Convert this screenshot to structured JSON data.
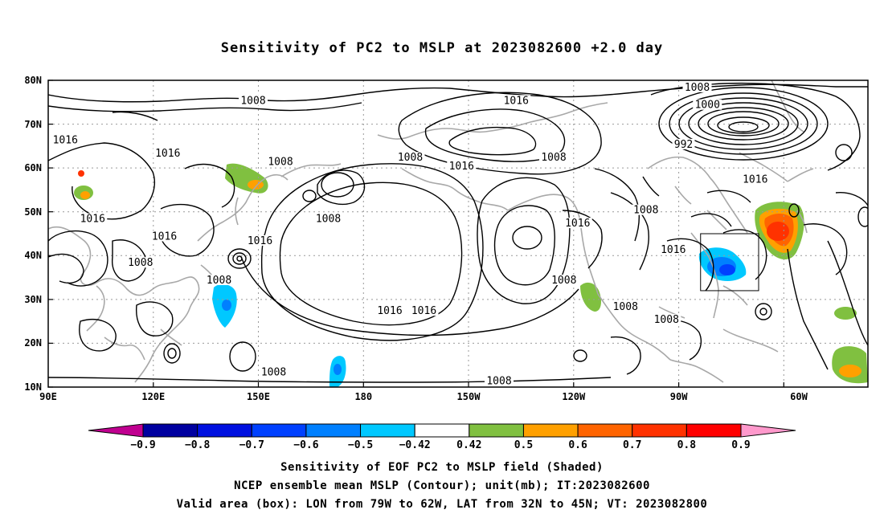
{
  "title": "Sensitivity of PC2 to MSLP at 2023082600 +2.0 day",
  "lat_ticks": [
    "80N",
    "70N",
    "60N",
    "50N",
    "40N",
    "30N",
    "20N",
    "10N"
  ],
  "lon_ticks": [
    "90E",
    "120E",
    "150E",
    "180",
    "150W",
    "120W",
    "90W",
    "60W"
  ],
  "contour_labels": [
    {
      "text": "1008",
      "lon": 150,
      "lat": 75
    },
    {
      "text": "1016",
      "lon": 227,
      "lat": 75
    },
    {
      "text": "1008",
      "lon": 280,
      "lat": 78
    },
    {
      "text": "1000",
      "lon": 283,
      "lat": 74
    },
    {
      "text": "1016",
      "lon": 95,
      "lat": 66
    },
    {
      "text": "1016",
      "lon": 125,
      "lat": 63
    },
    {
      "text": "1008",
      "lon": 158,
      "lat": 61
    },
    {
      "text": "1008",
      "lon": 196,
      "lat": 62
    },
    {
      "text": "1016",
      "lon": 211,
      "lat": 60
    },
    {
      "text": "1008",
      "lon": 238,
      "lat": 62
    },
    {
      "text": "992",
      "lon": 276,
      "lat": 65
    },
    {
      "text": "1016",
      "lon": 297,
      "lat": 57
    },
    {
      "text": "1016",
      "lon": 103,
      "lat": 48
    },
    {
      "text": "1016",
      "lon": 124,
      "lat": 44
    },
    {
      "text": "1016",
      "lon": 152,
      "lat": 43
    },
    {
      "text": "1008",
      "lon": 172,
      "lat": 48
    },
    {
      "text": "1016",
      "lon": 245,
      "lat": 47
    },
    {
      "text": "1008",
      "lon": 265,
      "lat": 50
    },
    {
      "text": "1008",
      "lon": 117,
      "lat": 38
    },
    {
      "text": "1016",
      "lon": 273,
      "lat": 41
    },
    {
      "text": "1008",
      "lon": 140,
      "lat": 34
    },
    {
      "text": "1008",
      "lon": 241,
      "lat": 34
    },
    {
      "text": "1016",
      "lon": 190,
      "lat": 27
    },
    {
      "text": "1016",
      "lon": 200,
      "lat": 27
    },
    {
      "text": "1008",
      "lon": 259,
      "lat": 28
    },
    {
      "text": "1008",
      "lon": 271,
      "lat": 25
    },
    {
      "text": "1008",
      "lon": 156,
      "lat": 13
    },
    {
      "text": "1008",
      "lon": 222,
      "lat": 11
    }
  ],
  "colorbar": {
    "labels": [
      "-0.9",
      "-0.8",
      "-0.7",
      "-0.6",
      "-0.5",
      "-0.42",
      "0.42",
      "0.5",
      "0.6",
      "0.7",
      "0.8",
      "0.9"
    ],
    "colors": [
      "#0000a0",
      "#0010e0",
      "#0040ff",
      "#0080ff",
      "#00c8ff",
      "#ffffff",
      "#80c040",
      "#ffa000",
      "#ff6400",
      "#ff3200",
      "#ff0000"
    ],
    "low_color": "#c00090",
    "high_color": "#ff99cc"
  },
  "valid_box": {
    "lon_min": 281,
    "lon_max": 298,
    "lat_min": 32,
    "lat_max": 45
  },
  "captions": [
    "Sensitivity of EOF PC2 to MSLP field (Shaded)",
    "NCEP ensemble mean MSLP (Contour); unit(mb); IT:2023082600",
    "Valid area (box): LON from 79W to 62W, LAT from 32N to 45N; VT: 2023082800"
  ],
  "shaded_regions": [
    {
      "sign": "positive",
      "level": "0.5",
      "color": "#80c040",
      "lon": 103,
      "lat": 54
    },
    {
      "sign": "positive",
      "level": "0.6",
      "color": "#ffa000",
      "lon": 104,
      "lat": 54
    },
    {
      "sign": "positive",
      "level": "0.5",
      "color": "#80c040",
      "lon": 146,
      "lat": 56
    },
    {
      "sign": "positive",
      "level": "0.5",
      "color": "#80c040",
      "lon": 241,
      "lat": 30
    },
    {
      "sign": "positive",
      "level": "0.7",
      "color": "#ff3200",
      "lon": 287,
      "lat": 44
    },
    {
      "sign": "positive",
      "level": "0.5",
      "color": "#80c040",
      "lon": 287,
      "lat": 46
    },
    {
      "sign": "positive",
      "level": "0.5",
      "color": "#80c040",
      "lon": 315,
      "lat": 16
    },
    {
      "sign": "negative",
      "level": "-0.6",
      "color": "#0080ff",
      "lon": 280,
      "lat": 37
    },
    {
      "sign": "negative",
      "level": "-0.5",
      "color": "#00c8ff",
      "lon": 141,
      "lat": 25
    },
    {
      "sign": "negative",
      "level": "-0.5",
      "color": "#00c8ff",
      "lon": 171,
      "lat": 13
    }
  ]
}
